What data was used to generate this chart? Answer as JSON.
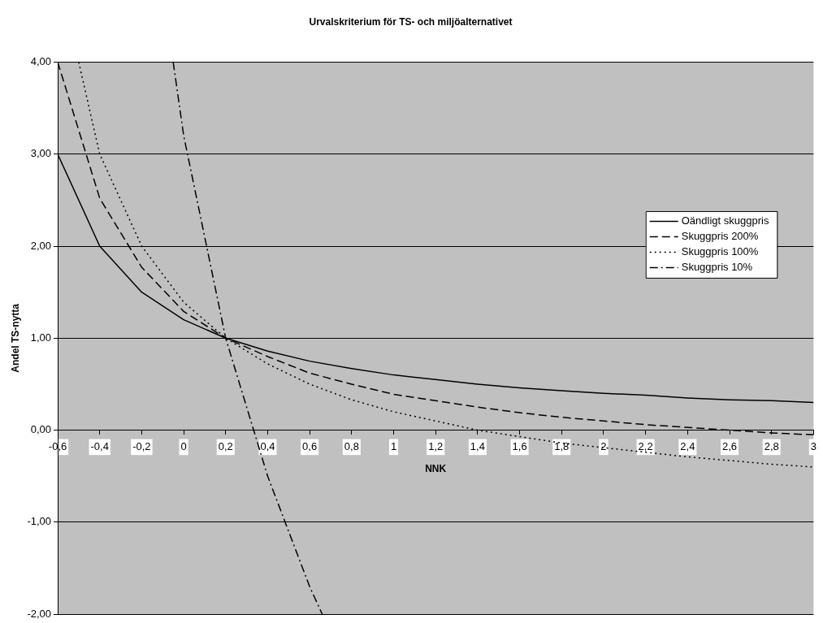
{
  "chart_data": {
    "type": "line",
    "title": "Urvalskriterium för TS- och miljöalternativet",
    "xlabel": "NNK",
    "ylabel": "Andel TS-nytta",
    "x": [
      -0.6,
      -0.4,
      -0.2,
      0,
      0.2,
      0.4,
      0.6,
      0.8,
      1,
      1.2,
      1.4,
      1.6,
      1.8,
      2,
      2.2,
      2.4,
      2.6,
      2.8,
      3
    ],
    "series": [
      {
        "name": "Oändligt skuggpris",
        "color": "#000000",
        "line_style": "solid",
        "values": [
          3,
          2,
          1.5,
          1.2,
          1,
          0.86,
          0.75,
          0.67,
          0.6,
          0.55,
          0.5,
          0.46,
          0.43,
          0.4,
          0.38,
          0.35,
          0.33,
          0.32,
          0.3
        ]
      },
      {
        "name": "Skuggpris 200%",
        "color": "#000000",
        "line_style": "dashed",
        "values": [
          4,
          2.52,
          1.77,
          1.29,
          1,
          0.8,
          0.62,
          0.5,
          0.39,
          0.32,
          0.25,
          0.19,
          0.14,
          0.1,
          0.06,
          0.03,
          0,
          -0.03,
          -0.05
        ]
      },
      {
        "name": "Skuggpris 100%",
        "color": "#000000",
        "line_style": "dotted",
        "x": [
          -0.5,
          -0.4,
          -0.2,
          0,
          0.2,
          0.4,
          0.6,
          0.8,
          1,
          1.2,
          1.4,
          1.6,
          1.8,
          2,
          2.2,
          2.4,
          2.6,
          2.8,
          3
        ],
        "values": [
          4,
          3,
          2,
          1.39,
          1,
          0.72,
          0.5,
          0.33,
          0.2,
          0.1,
          0,
          -0.07,
          -0.14,
          -0.19,
          -0.24,
          -0.29,
          -0.33,
          -0.37,
          -0.4
        ]
      },
      {
        "name": "Skuggpris 10%",
        "color": "#000000",
        "line_style": "dashdot",
        "x": [
          -0.05,
          0,
          0.2,
          0.4,
          0.6,
          0.66
        ],
        "values": [
          4,
          3.2,
          1,
          -0.5,
          -1.7,
          -2
        ]
      }
    ],
    "xlim": [
      -0.6,
      3
    ],
    "xticks": [
      {
        "value": -0.6,
        "label": "-0,6"
      },
      {
        "value": -0.4,
        "label": "-0,4"
      },
      {
        "value": -0.2,
        "label": "-0,2"
      },
      0,
      {
        "value": 0.2,
        "label": "0,2"
      },
      {
        "value": 0.4,
        "label": "0,4"
      },
      {
        "value": 0.6,
        "label": "0,6"
      },
      {
        "value": 0.8,
        "label": "0,8"
      },
      1,
      {
        "value": 1.2,
        "label": "1,2"
      },
      {
        "value": 1.4,
        "label": "1,4"
      },
      {
        "value": 1.6,
        "label": "1,6"
      },
      {
        "value": 1.8,
        "label": "1,8"
      },
      2,
      {
        "value": 2.2,
        "label": "2,2"
      },
      {
        "value": 2.4,
        "label": "2,4"
      },
      {
        "value": 2.6,
        "label": "2,6"
      },
      {
        "value": 2.8,
        "label": "2,8"
      },
      3
    ],
    "ylim": [
      -2,
      4
    ],
    "yticks": [
      {
        "value": -2,
        "label": "-2,00"
      },
      {
        "value": -1,
        "label": "-1,00"
      },
      {
        "value": 0,
        "label": "0,00"
      },
      {
        "value": 1,
        "label": "1,00"
      },
      {
        "value": 2,
        "label": "2,00"
      },
      {
        "value": 3,
        "label": "3,00"
      },
      {
        "value": 4,
        "label": "4,00"
      }
    ],
    "grid": "y",
    "legend": "right",
    "marker": "none"
  }
}
